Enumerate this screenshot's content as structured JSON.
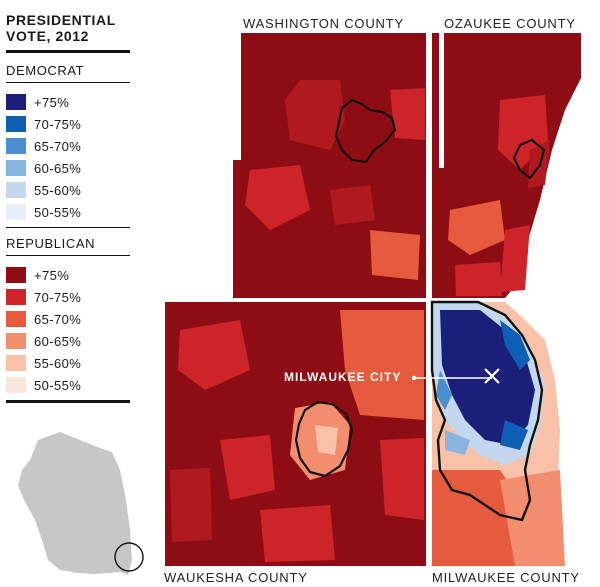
{
  "legend": {
    "title_line1": "PRESIDENTIAL",
    "title_line2": "VOTE, 2012",
    "democrat": {
      "label": "DEMOCRAT",
      "items": [
        {
          "label": "+75%",
          "color": "#1b1f7a"
        },
        {
          "label": "70-75%",
          "color": "#0e5fb3"
        },
        {
          "label": "65-70%",
          "color": "#4a8ed0"
        },
        {
          "label": "60-65%",
          "color": "#88b4df"
        },
        {
          "label": "55-60%",
          "color": "#c3d8ef"
        },
        {
          "label": "50-55%",
          "color": "#e7eff8"
        }
      ]
    },
    "republican": {
      "label": "REPUBLICAN",
      "items": [
        {
          "label": "+75%",
          "color": "#8e0d14"
        },
        {
          "label": "70-75%",
          "color": "#cc2428"
        },
        {
          "label": "65-70%",
          "color": "#e65a3d"
        },
        {
          "label": "60-65%",
          "color": "#f28e6e"
        },
        {
          "label": "55-60%",
          "color": "#f8c1a8"
        },
        {
          "label": "50-55%",
          "color": "#fbe6dc"
        }
      ]
    }
  },
  "counties": {
    "washington": "WASHINGTON COUNTY",
    "ozaukee": "OZAUKEE COUNTY",
    "waukesha": "WAUKESHA COUNTY",
    "milwaukee": "MILWAUKEE COUNTY"
  },
  "city_label": "MILWAUKEE CITY",
  "inset": {
    "state_color": "#c7c7c7"
  }
}
